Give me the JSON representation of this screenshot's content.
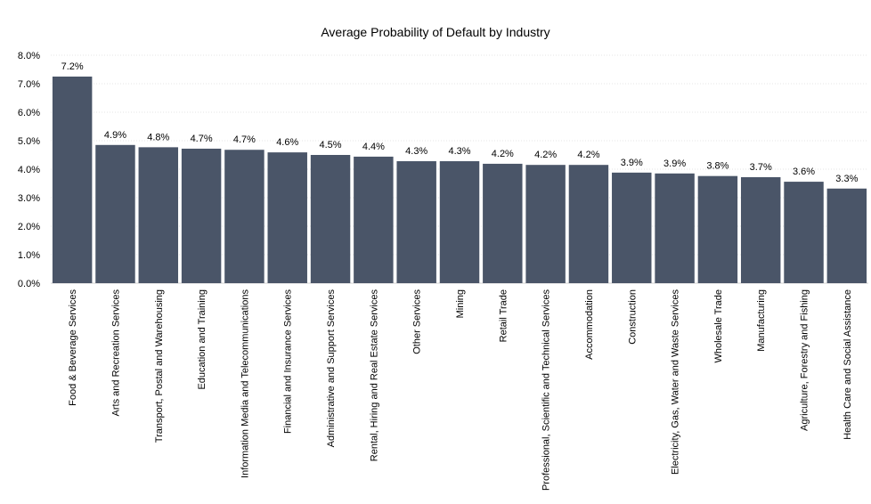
{
  "chart_data": {
    "type": "bar",
    "title": "Average Probability of Default by Industry",
    "xlabel": "",
    "ylabel": "",
    "ylim": [
      0,
      8
    ],
    "y_ticks": [
      "0.0%",
      "1.0%",
      "2.0%",
      "3.0%",
      "4.0%",
      "5.0%",
      "6.0%",
      "7.0%",
      "8.0%"
    ],
    "grid": true,
    "legend": "none",
    "bar_color": "#4a5568",
    "categories": [
      "Food & Beverage Services",
      "Arts and Recreation Services",
      "Transport, Postal and Warehousing",
      "Education and Training",
      "Information Media and Telecommunications",
      "Financial and Insurance Services",
      "Administrative and Support Services",
      "Rental, Hiring and Real Estate Services",
      "Other Services",
      "Mining",
      "Retail Trade",
      "Professional, Scientific and Technical Services",
      "Accommodation",
      "Construction",
      "Electricity, Gas, Water and Waste Services",
      "Wholesale Trade",
      "Manufacturing",
      "Agriculture, Forestry and Fishing",
      "Health Care and Social Assistance"
    ],
    "values": [
      7.25,
      4.85,
      4.77,
      4.72,
      4.68,
      4.59,
      4.5,
      4.44,
      4.28,
      4.28,
      4.19,
      4.15,
      4.15,
      3.88,
      3.85,
      3.76,
      3.72,
      3.56,
      3.32
    ],
    "data_labels": [
      "7.2%",
      "4.9%",
      "4.8%",
      "4.7%",
      "4.7%",
      "4.6%",
      "4.5%",
      "4.4%",
      "4.3%",
      "4.3%",
      "4.2%",
      "4.2%",
      "4.2%",
      "3.9%",
      "3.9%",
      "3.8%",
      "3.7%",
      "3.6%",
      "3.3%"
    ]
  }
}
